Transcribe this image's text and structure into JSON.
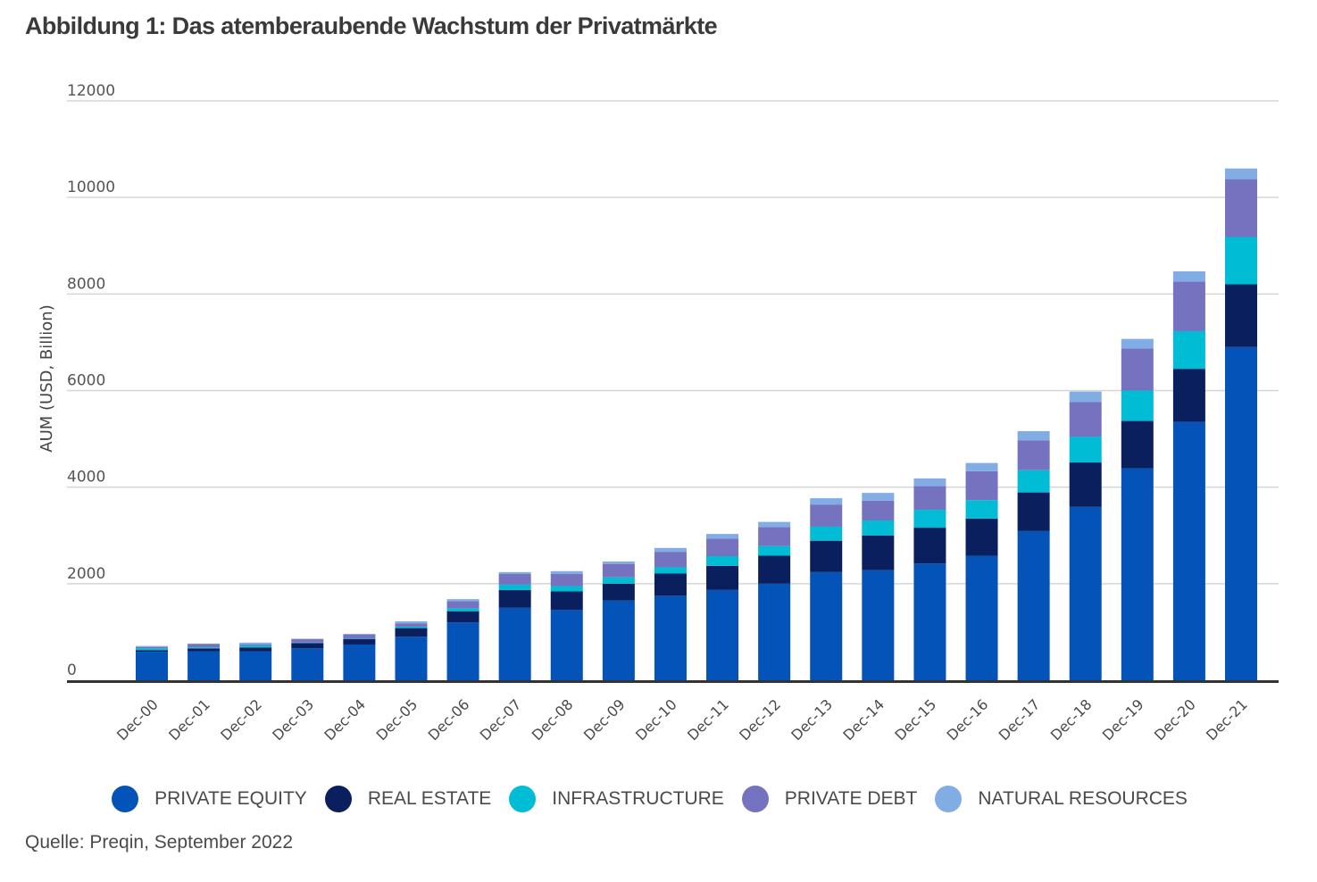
{
  "title": "Abbildung 1: Das atemberaubende Wachstum der Privatmärkte",
  "source": "Quelle: Preqin, September 2022",
  "chart_data": {
    "type": "bar",
    "stacked": true,
    "title": "Abbildung 1: Das atemberaubende Wachstum der Privatmärkte",
    "xlabel": "",
    "ylabel": "AUM (USD, Billion)",
    "ylim": [
      0,
      12000
    ],
    "yticks": [
      0,
      2000,
      4000,
      6000,
      8000,
      10000,
      12000
    ],
    "grid": true,
    "legend_position": "bottom",
    "categories": [
      "Dec-00",
      "Dec-01",
      "Dec-02",
      "Dec-03",
      "Dec-04",
      "Dec-05",
      "Dec-06",
      "Dec-07",
      "Dec-08",
      "Dec-09",
      "Dec-10",
      "Dec-11",
      "Dec-12",
      "Dec-13",
      "Dec-14",
      "Dec-15",
      "Dec-16",
      "Dec-17",
      "Dec-18",
      "Dec-19",
      "Dec-20",
      "Dec-21"
    ],
    "series": [
      {
        "name": "PRIVATE EQUITY",
        "color": "#0353b8",
        "values": [
          590,
          600,
          600,
          660,
          740,
          900,
          1200,
          1500,
          1460,
          1650,
          1750,
          1870,
          2000,
          2240,
          2280,
          2420,
          2580,
          3090,
          3590,
          4390,
          5350,
          6900
        ]
      },
      {
        "name": "REAL ESTATE",
        "color": "#0a1f5e",
        "values": [
          30,
          60,
          80,
          110,
          110,
          180,
          230,
          370,
          380,
          350,
          460,
          500,
          580,
          650,
          720,
          740,
          770,
          800,
          920,
          980,
          1100,
          1300
        ]
      },
      {
        "name": "INFRASTRUCTURE",
        "color": "#00bcd4",
        "values": [
          40,
          20,
          40,
          10,
          10,
          30,
          60,
          110,
          110,
          130,
          130,
          200,
          200,
          290,
          310,
          370,
          380,
          460,
          530,
          630,
          780,
          980
        ]
      },
      {
        "name": "PRIVATE DEBT",
        "color": "#7572bf",
        "values": [
          30,
          70,
          20,
          70,
          90,
          70,
          150,
          220,
          250,
          280,
          320,
          360,
          390,
          460,
          410,
          490,
          600,
          620,
          720,
          870,
          1030,
          1200
        ]
      },
      {
        "name": "NATURAL RESOURCES",
        "color": "#82ace4",
        "values": [
          20,
          10,
          40,
          10,
          10,
          40,
          40,
          40,
          60,
          50,
          80,
          100,
          110,
          130,
          160,
          160,
          170,
          190,
          220,
          200,
          210,
          220
        ]
      }
    ]
  }
}
